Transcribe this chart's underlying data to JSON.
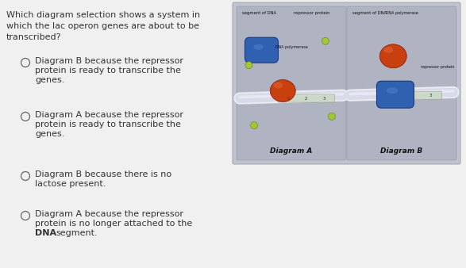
{
  "bg_color": "#f0f0f0",
  "question_line1": "Which diagram selection shows a system in",
  "question_line2": "which the lac operon genes are about to be",
  "question_line3": "transcribed?",
  "options": [
    {
      "lines": [
        "Diagram B because the repressor",
        "protein is ready to transcribe the",
        "genes."
      ],
      "bold_lines": []
    },
    {
      "lines": [
        "Diagram A because the repressor",
        "protein is ready to transcribe the",
        "genes."
      ],
      "bold_lines": []
    },
    {
      "lines": [
        "Diagram B because there is no",
        "lactose present."
      ],
      "bold_lines": []
    },
    {
      "lines": [
        "Diagram A because the repressor",
        "protein is no longer attached to the",
        "DNA segment."
      ],
      "bold_lines": [
        2
      ]
    }
  ],
  "panel_bg": "#c0c4d0",
  "sub_panel_bg": "#b0b4c2",
  "diagram_a_label": "Diagram A",
  "diagram_b_label": "Diagram B",
  "dna_outer_color": "#e8e8f0",
  "dna_inner_color": "#d4d8e4",
  "repressor_color": "#c84010",
  "repressor_shine": "#e06030",
  "polymerase_color": "#3060b0",
  "polymerase_edge": "#1a3a80",
  "dot_color": "#a0c830",
  "dot_edge": "#608010",
  "label_color": "#222222",
  "text_color": "#333333"
}
